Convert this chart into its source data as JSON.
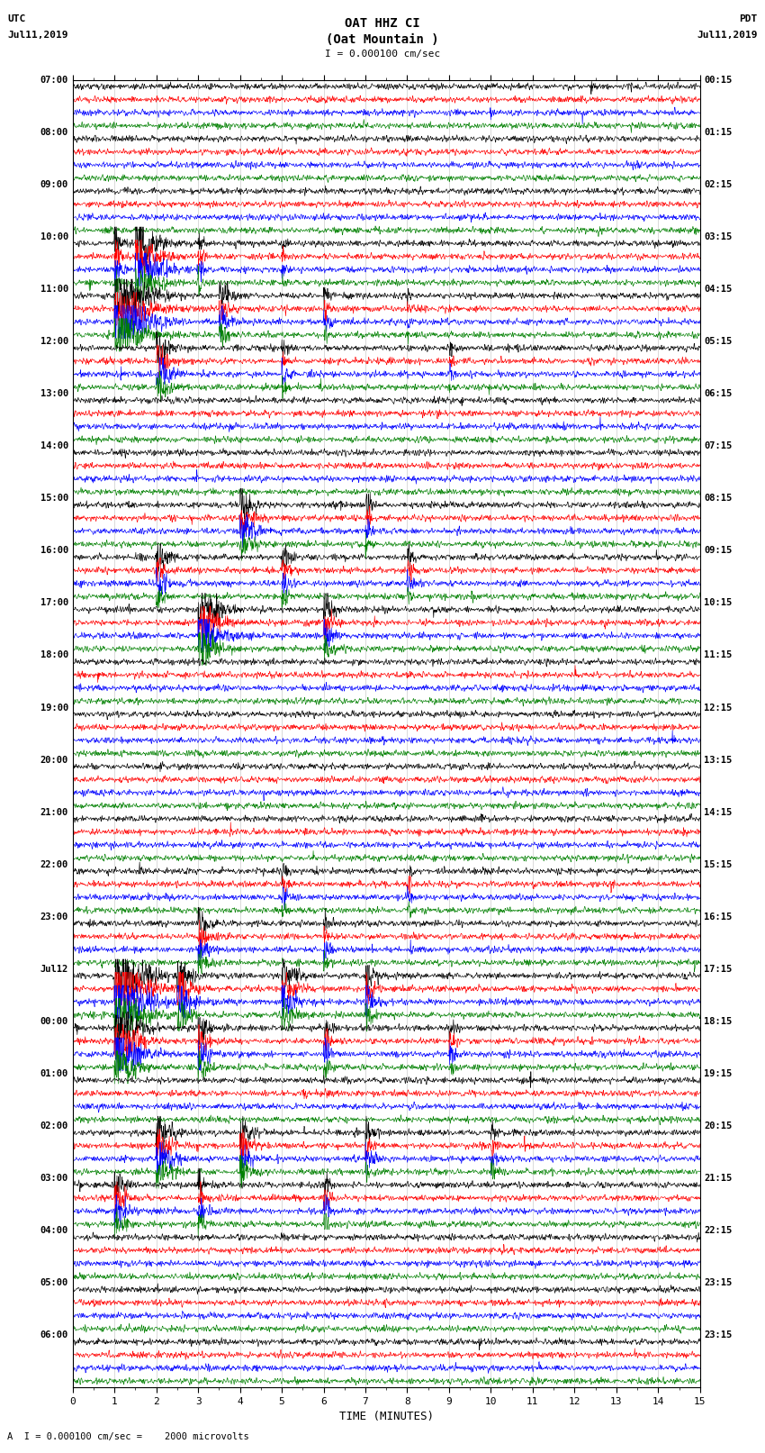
{
  "title_line1": "OAT HHZ CI",
  "title_line2": "(Oat Mountain )",
  "scale_label": "I = 0.000100 cm/sec",
  "bottom_label": "A  I = 0.000100 cm/sec =    2000 microvolts",
  "xlabel": "TIME (MINUTES)",
  "utc_label": "UTC",
  "utc_date": "Jul11,2019",
  "pdt_label": "PDT",
  "pdt_date": "Jul11,2019",
  "hour_labels_left": [
    "07:00",
    "08:00",
    "09:00",
    "10:00",
    "11:00",
    "12:00",
    "13:00",
    "14:00",
    "15:00",
    "16:00",
    "17:00",
    "18:00",
    "19:00",
    "20:00",
    "21:00",
    "22:00",
    "23:00",
    "Jul12",
    "00:00",
    "01:00",
    "02:00",
    "03:00",
    "04:00",
    "05:00",
    "06:00"
  ],
  "hour_labels_right": [
    "00:15",
    "01:15",
    "02:15",
    "03:15",
    "04:15",
    "05:15",
    "06:15",
    "07:15",
    "08:15",
    "09:15",
    "10:15",
    "11:15",
    "12:15",
    "13:15",
    "14:15",
    "15:15",
    "16:15",
    "17:15",
    "18:15",
    "19:15",
    "20:15",
    "21:15",
    "22:15",
    "23:15",
    "23:15"
  ],
  "colors": [
    "black",
    "red",
    "blue",
    "green"
  ],
  "xmin": 0,
  "xmax": 15,
  "xticks": [
    0,
    1,
    2,
    3,
    4,
    5,
    6,
    7,
    8,
    9,
    10,
    11,
    12,
    13,
    14,
    15
  ],
  "bg_color": "white",
  "figwidth": 8.5,
  "figheight": 16.13,
  "dpi": 100,
  "n_groups": 25,
  "n_traces_per_group": 4,
  "jul12_group": 17,
  "jul12_label": "Jul12"
}
